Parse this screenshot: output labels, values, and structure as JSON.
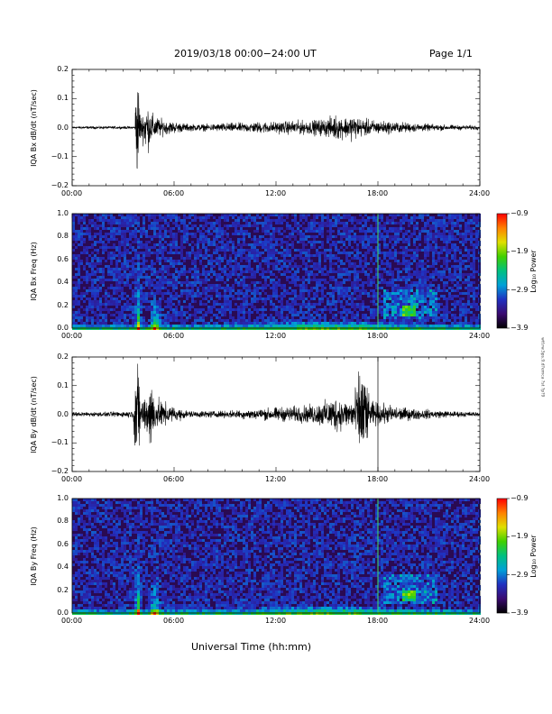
{
  "header": {
    "title": "2019/03/18  00:00−24:00 UT",
    "page": "Page 1/1"
  },
  "footer": {
    "xlabel": "Universal Time (hh:mm)",
    "side_note": "wtf.rw.5ps.9.d?ernca ?st ?p?9"
  },
  "colors": {
    "trace": "#000000",
    "frame": "#000000",
    "spectrogram_background": "#2a0a52",
    "colorbar": [
      "#000000",
      "#3a0a70",
      "#2030c0",
      "#00a0d8",
      "#00c080",
      "#40d000",
      "#e0e000",
      "#ff8000",
      "#ff0000"
    ]
  },
  "chart_data": [
    {
      "type": "line",
      "name": "bx-waveform",
      "xlabel": "",
      "ylabel": "IQA Bx dB/dt (nT/sec)",
      "xlim": [
        0,
        24
      ],
      "ylim": [
        -0.2,
        0.2
      ],
      "xticks": [
        "00:00",
        "06:00",
        "12:00",
        "18:00",
        "24:00"
      ],
      "yticks": [
        "0.2",
        "0.1",
        "0.0",
        "−0.1",
        "−0.2"
      ],
      "envelope": {
        "x": [
          0,
          2,
          3.7,
          3.75,
          3.95,
          4.0,
          4.1,
          4.4,
          4.6,
          4.9,
          5.5,
          6,
          7,
          8,
          9,
          10,
          11,
          12,
          13,
          14,
          15,
          15.5,
          16,
          16.5,
          17,
          18,
          19,
          20,
          21,
          22,
          23,
          24
        ],
        "amp": [
          0.006,
          0.006,
          0.006,
          0.21,
          0.21,
          0.06,
          0.05,
          0.12,
          0.07,
          0.05,
          0.03,
          0.025,
          0.015,
          0.015,
          0.02,
          0.02,
          0.025,
          0.025,
          0.03,
          0.03,
          0.04,
          0.055,
          0.045,
          0.055,
          0.04,
          0.03,
          0.025,
          0.02,
          0.015,
          0.012,
          0.01,
          0.01
        ]
      }
    },
    {
      "type": "heatmap",
      "name": "bx-spectrogram",
      "ylabel": "IQA Bx Freq (Hz)",
      "xlim": [
        0,
        24
      ],
      "ylim": [
        0,
        1.0
      ],
      "xticks": [
        "00:00",
        "06:00",
        "12:00",
        "18:00",
        "24:00"
      ],
      "yticks": [
        "1.0",
        "0.8",
        "0.6",
        "0.4",
        "0.2",
        "0.0"
      ],
      "colorbar": {
        "label": "Log₁₀ Power",
        "ticks": [
          "−0.9",
          "−1.9",
          "−2.9",
          "−3.9"
        ],
        "range": [
          -3.9,
          -0.9
        ]
      },
      "vertical_line_hours": 18.0
    },
    {
      "type": "line",
      "name": "by-waveform",
      "xlabel": "",
      "ylabel": "IQA By dB/dt (nT/sec)",
      "xlim": [
        0,
        24
      ],
      "ylim": [
        -0.2,
        0.2
      ],
      "xticks": [
        "00:00",
        "06:00",
        "12:00",
        "18:00",
        "24:00"
      ],
      "yticks": [
        "0.2",
        "0.1",
        "0.0",
        "−0.1",
        "−0.2"
      ],
      "envelope": {
        "x": [
          0,
          2,
          3.6,
          3.7,
          3.95,
          4.0,
          4.2,
          4.6,
          4.9,
          5.5,
          6,
          7,
          8,
          9,
          10,
          11,
          12,
          13,
          14,
          15,
          15.5,
          16,
          16.5,
          17,
          17.2,
          17.5,
          18,
          19,
          20,
          21,
          22,
          23,
          24
        ],
        "amp": [
          0.01,
          0.01,
          0.015,
          0.21,
          0.21,
          0.08,
          0.06,
          0.17,
          0.07,
          0.05,
          0.03,
          0.015,
          0.015,
          0.015,
          0.02,
          0.025,
          0.03,
          0.035,
          0.04,
          0.06,
          0.08,
          0.06,
          0.07,
          0.21,
          0.21,
          0.06,
          0.05,
          0.035,
          0.025,
          0.02,
          0.015,
          0.012,
          0.01
        ]
      },
      "vertical_line_hours": 18.0
    },
    {
      "type": "heatmap",
      "name": "by-spectrogram",
      "ylabel": "IQA By Freq (Hz)",
      "xlim": [
        0,
        24
      ],
      "ylim": [
        0,
        1.0
      ],
      "xticks": [
        "00:00",
        "06:00",
        "12:00",
        "18:00",
        "24:00"
      ],
      "yticks": [
        "1.0",
        "0.8",
        "0.6",
        "0.4",
        "0.2",
        "0.0"
      ],
      "colorbar": {
        "label": "Log₁₀ Power",
        "ticks": [
          "−0.9",
          "−1.9",
          "−2.9",
          "−3.9"
        ],
        "range": [
          -3.9,
          -0.9
        ]
      },
      "vertical_line_hours": 18.0
    }
  ]
}
